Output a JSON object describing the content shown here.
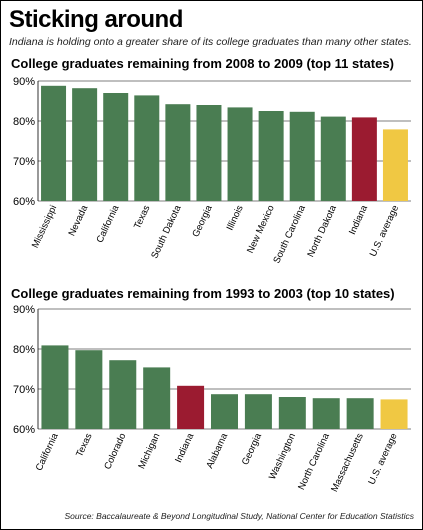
{
  "headline": "Sticking around",
  "subhead": "Indiana is holding onto a greater share of its college graduates than many other states.",
  "source": "Source: Baccalaureate & Beyond Longitudinal Study, National Center for Education Statistics",
  "colors": {
    "default": "#4a7d52",
    "indiana": "#9b1b30",
    "us_average": "#f0c843",
    "grid": "#000000"
  },
  "chart_data": [
    {
      "type": "bar",
      "title": "College graduates remaining from 2008 to 2009 (top 11 states)",
      "categories": [
        "Mississippi",
        "Nevada",
        "California",
        "Texas",
        "South Dakota",
        "Georgia",
        "Illinois",
        "New Mexico",
        "South Carolina",
        "North Dakota",
        "Indiana",
        "U.S. average"
      ],
      "values": [
        88.8,
        88.2,
        87.0,
        86.4,
        84.2,
        84.0,
        83.4,
        82.5,
        82.3,
        81.1,
        80.9,
        77.9
      ],
      "highlight": {
        "Indiana": "indiana",
        "U.S. average": "us_average"
      },
      "ylim": [
        60,
        90
      ],
      "yticks": [
        60,
        70,
        80,
        90
      ],
      "ytick_labels": [
        "60%",
        "70%",
        "80%",
        "90%"
      ],
      "grid": true
    },
    {
      "type": "bar",
      "title": "College graduates remaining from 1993 to 2003 (top 10 states)",
      "categories": [
        "California",
        "Texas",
        "Colorado",
        "Michigan",
        "Indiana",
        "Alabama",
        "Georgia",
        "Washington",
        "North Carolina",
        "Massachusetts",
        "U.S. average"
      ],
      "values": [
        80.9,
        79.7,
        77.2,
        75.4,
        70.8,
        68.7,
        68.7,
        68.0,
        67.7,
        67.7,
        67.4
      ],
      "highlight": {
        "Indiana": "indiana",
        "U.S. average": "us_average"
      },
      "ylim": [
        60,
        90
      ],
      "yticks": [
        60,
        70,
        80,
        90
      ],
      "ytick_labels": [
        "60%",
        "70%",
        "80%",
        "90%"
      ],
      "grid": true
    }
  ]
}
